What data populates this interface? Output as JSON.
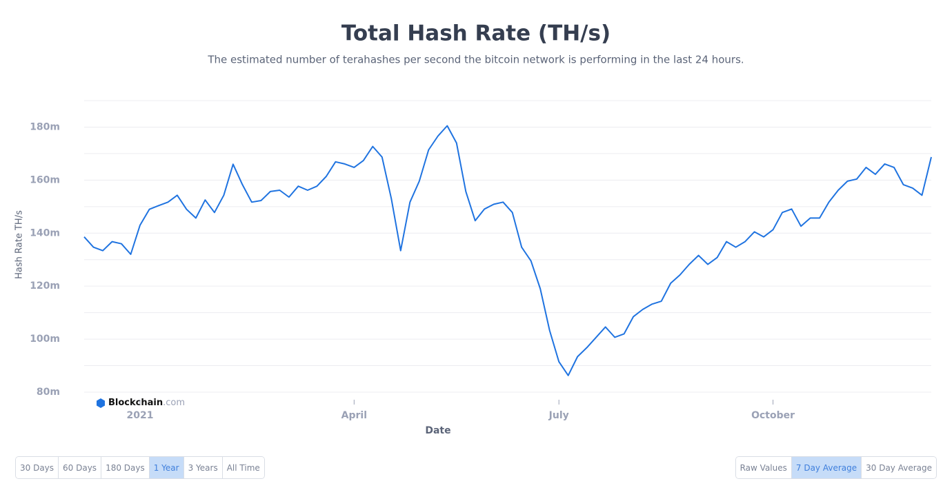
{
  "chart_data": {
    "type": "line",
    "title": "Total Hash Rate (TH/s)",
    "subtitle": "The estimated number of terahashes per second the bitcoin network is performing in the last 24 hours.",
    "ylabel": "Hash Rate TH/s",
    "xlabel": "Date",
    "categories": [
      null,
      null,
      null,
      null,
      null,
      null,
      "2021",
      null,
      null,
      null,
      null,
      null,
      null,
      null,
      null,
      null,
      null,
      null,
      null,
      null,
      null,
      null,
      null,
      null,
      null,
      null,
      null,
      null,
      null,
      "April",
      null,
      null,
      null,
      null,
      null,
      null,
      null,
      null,
      null,
      null,
      null,
      null,
      null,
      null,
      null,
      null,
      null,
      null,
      null,
      null,
      null,
      "July",
      null,
      null,
      null,
      null,
      null,
      null,
      null,
      null,
      null,
      null,
      null,
      null,
      null,
      null,
      null,
      null,
      null,
      null,
      null,
      null,
      null,
      null,
      "October",
      null,
      null,
      null,
      null,
      null,
      null,
      null,
      null,
      null,
      null,
      null,
      null,
      null,
      null,
      null,
      null,
      null
    ],
    "series": [
      {
        "name": "Hash Rate",
        "color": "#1f73e0",
        "values": [
          138.6,
          134.7,
          133.4,
          136.8,
          136,
          132,
          143,
          149,
          150.4,
          151.7,
          154.3,
          149,
          145.7,
          152.5,
          147.8,
          154.3,
          166,
          158.3,
          151.7,
          152.3,
          155.7,
          156.2,
          153.6,
          157.7,
          156.2,
          157.7,
          161.4,
          166.9,
          166.1,
          164.8,
          167.4,
          172.7,
          168.7,
          153,
          133.4,
          151.7,
          159.6,
          171.4,
          176.6,
          180.5,
          174,
          155.7,
          144.7,
          149.1,
          150.9,
          151.7,
          147.8,
          134.7,
          129.5,
          119,
          103.3,
          91.5,
          86.3,
          93.4,
          96.8,
          100.7,
          104.6,
          100.7,
          102,
          108.5,
          111.2,
          113.2,
          114.3,
          121.1,
          124.2,
          128.2,
          131.6,
          128.2,
          130.8,
          136.8,
          134.7,
          136.8,
          140.5,
          138.6,
          141.3,
          147.8,
          149.1,
          142.6,
          145.7,
          145.7,
          151.7,
          156.2,
          159.6,
          160.4,
          164.8,
          162.2,
          166.1,
          164.8,
          158.3,
          157,
          154.3,
          168.7
        ]
      }
    ],
    "ylim": [
      80,
      190
    ],
    "yticks": [
      {
        "value": 80,
        "label": "80m"
      },
      {
        "value": 100,
        "label": "100m"
      },
      {
        "value": 120,
        "label": "120m"
      },
      {
        "value": 140,
        "label": "140m"
      },
      {
        "value": 160,
        "label": "160m"
      },
      {
        "value": 180,
        "label": "180m"
      }
    ],
    "minor_yticks": [
      90,
      110,
      130,
      150,
      170,
      190
    ],
    "grid": true
  },
  "brand": {
    "name": "Blockchain",
    "suffix": ".com"
  },
  "range_buttons": [
    {
      "label": "30 Days"
    },
    {
      "label": "60 Days"
    },
    {
      "label": "180 Days"
    },
    {
      "label": "1 Year",
      "active": true
    },
    {
      "label": "3 Years"
    },
    {
      "label": "All Time"
    }
  ],
  "average_buttons": [
    {
      "label": "Raw Values"
    },
    {
      "label": "7 Day Average",
      "active": true
    },
    {
      "label": "30 Day Average"
    }
  ]
}
